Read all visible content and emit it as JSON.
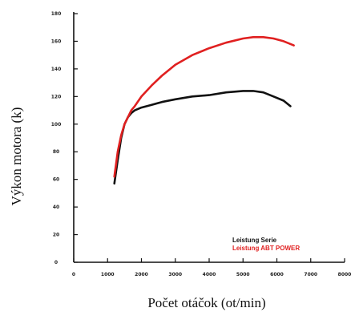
{
  "chart_data": {
    "type": "line",
    "title": "",
    "xlabel": "Počet otáčok (ot/min)",
    "ylabel": "Výkon motora (k)",
    "xlim": [
      0,
      8000
    ],
    "ylim": [
      0,
      180
    ],
    "xticks": [
      0,
      1000,
      2000,
      3000,
      4000,
      5000,
      6000,
      7000,
      8000
    ],
    "yticks": [
      0,
      20,
      40,
      60,
      80,
      100,
      120,
      140,
      160,
      180
    ],
    "grid": false,
    "legend_position": "bottom-right",
    "series": [
      {
        "name": "Leistung Serie",
        "color": "#111111",
        "x": [
          1200,
          1300,
          1400,
          1500,
          1600,
          1700,
          1800,
          2000,
          2300,
          2600,
          3000,
          3500,
          4000,
          4500,
          5000,
          5300,
          5600,
          5900,
          6200,
          6400
        ],
        "y": [
          57,
          74,
          90,
          100,
          105,
          108,
          110,
          112,
          114,
          116,
          118,
          120,
          121,
          123,
          124,
          124,
          123,
          120,
          117,
          113
        ]
      },
      {
        "name": "Leistung ABT POWER",
        "color": "#e02020",
        "x": [
          1200,
          1300,
          1400,
          1500,
          1600,
          1700,
          1800,
          2000,
          2300,
          2600,
          3000,
          3500,
          4000,
          4500,
          5000,
          5300,
          5600,
          5900,
          6200,
          6500
        ],
        "y": [
          62,
          80,
          92,
          100,
          105,
          110,
          113,
          120,
          128,
          135,
          143,
          150,
          155,
          159,
          162,
          163,
          163,
          162,
          160,
          157
        ]
      }
    ]
  }
}
